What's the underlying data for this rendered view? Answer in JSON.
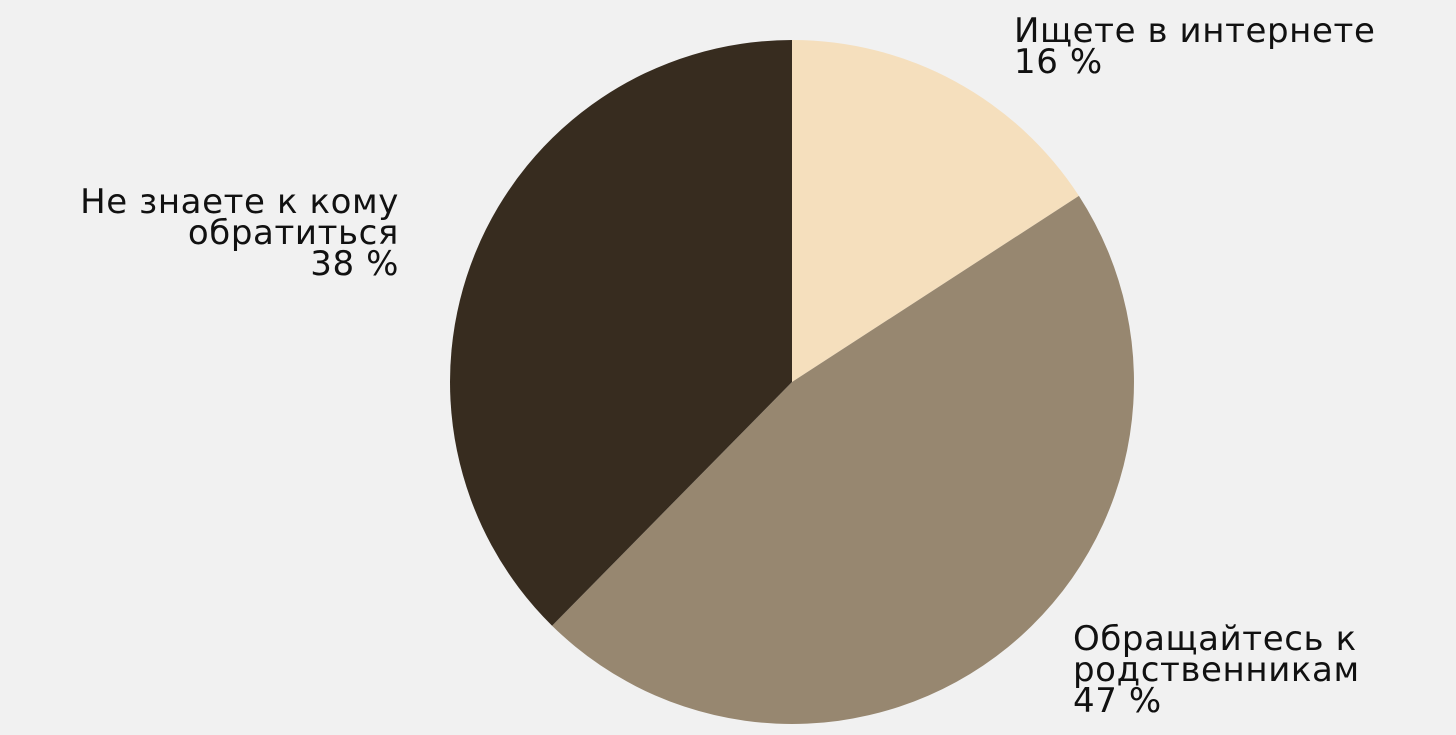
{
  "chart_data": {
    "type": "pie",
    "start_angle_deg": 0,
    "direction": "clockwise",
    "slices": [
      {
        "label_lines": [
          "Ищете в интернете"
        ],
        "value": 16,
        "value_text": "16 %",
        "color": "#f5dfbd",
        "label_anchor": "start"
      },
      {
        "label_lines": [
          "Обращайтесь к",
          "родственникам"
        ],
        "value": 47,
        "value_text": "47 %",
        "color": "#978770",
        "label_anchor": "start"
      },
      {
        "label_lines": [
          "Не знаете к кому",
          "обратиться"
        ],
        "value": 38,
        "value_text": "38 %",
        "color": "#372c1f",
        "label_anchor": "end"
      }
    ]
  }
}
